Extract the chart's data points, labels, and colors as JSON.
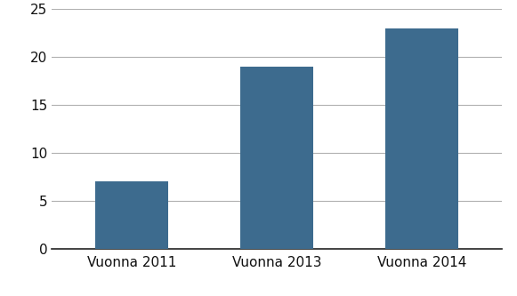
{
  "categories": [
    "Vuonna 2011",
    "Vuonna 2013",
    "Vuonna 2014"
  ],
  "values": [
    7,
    19,
    23
  ],
  "bar_color": "#3d6b8e",
  "ylim": [
    0,
    25
  ],
  "yticks": [
    0,
    5,
    10,
    15,
    20,
    25
  ],
  "background_color": "#ffffff",
  "grid_color": "#b0b0b0",
  "bar_width": 0.5,
  "tick_label_fontsize": 11,
  "axis_label_color": "#111111",
  "figsize": [
    5.81,
    3.33
  ],
  "dpi": 100
}
